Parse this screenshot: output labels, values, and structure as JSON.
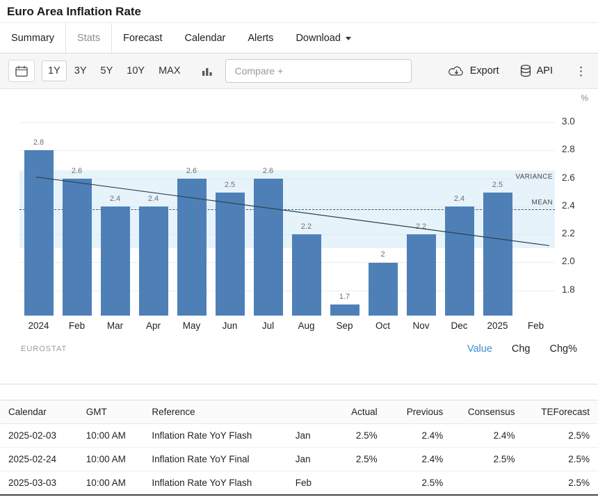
{
  "page": {
    "title": "Euro Area Inflation Rate"
  },
  "tabs": {
    "items": [
      {
        "label": "Summary",
        "active": false,
        "dropdown": false
      },
      {
        "label": "Stats",
        "active": true,
        "dropdown": false
      },
      {
        "label": "Forecast",
        "active": false,
        "dropdown": false
      },
      {
        "label": "Calendar",
        "active": false,
        "dropdown": false
      },
      {
        "label": "Alerts",
        "active": false,
        "dropdown": false
      },
      {
        "label": "Download",
        "active": false,
        "dropdown": true
      }
    ]
  },
  "toolbar": {
    "ranges": [
      "1Y",
      "3Y",
      "5Y",
      "10Y",
      "MAX"
    ],
    "active_range": "1Y",
    "compare_placeholder": "Compare +",
    "export_label": "Export",
    "api_label": "API"
  },
  "chart_data": {
    "type": "bar",
    "categories": [
      "2024",
      "Feb",
      "Mar",
      "Apr",
      "May",
      "Jun",
      "Jul",
      "Aug",
      "Sep",
      "Oct",
      "Nov",
      "Dec",
      "2025",
      "Feb"
    ],
    "values": [
      2.8,
      2.6,
      2.4,
      2.4,
      2.6,
      2.5,
      2.6,
      2.2,
      1.7,
      2,
      2.2,
      2.4,
      2.5,
      null
    ],
    "bar_labels": [
      "2.8",
      "2.6",
      "2.4",
      "2.4",
      "2.6",
      "2.5",
      "2.6",
      "2.2",
      "1.7",
      "2",
      "2.2",
      "2.4",
      "2.5",
      ""
    ],
    "ylabel": "%",
    "yticks": [
      "3.0",
      "2.8",
      "2.6",
      "2.4",
      "2.2",
      "2.0",
      "1.8"
    ],
    "ylim": [
      1.62,
      3.11
    ],
    "mean": 2.38,
    "mean_label": "MEAN",
    "variance_band": [
      2.1,
      2.66
    ],
    "variance_label": "VARIANCE",
    "trend_line": {
      "start_value": 2.61,
      "end_value": 2.12
    },
    "bar_color": "#4e80b7",
    "grid": true,
    "legend": "none",
    "source": "EUROSTAT",
    "view_modes": [
      {
        "label": "Value",
        "active": true
      },
      {
        "label": "Chg",
        "active": false
      },
      {
        "label": "Chg%",
        "active": false
      }
    ]
  },
  "table": {
    "headers": [
      "Calendar",
      "GMT",
      "Reference",
      "",
      "Actual",
      "Previous",
      "Consensus",
      "TEForecast"
    ],
    "rows": [
      {
        "calendar": "2025-02-03",
        "gmt": "10:00 AM",
        "reference": "Inflation Rate YoY Flash",
        "period": "Jan",
        "actual": "2.5%",
        "previous": "2.4%",
        "consensus": "2.4%",
        "teforecast": "2.5%"
      },
      {
        "calendar": "2025-02-24",
        "gmt": "10:00 AM",
        "reference": "Inflation Rate YoY Final",
        "period": "Jan",
        "actual": "2.5%",
        "previous": "2.4%",
        "consensus": "2.5%",
        "teforecast": "2.5%"
      },
      {
        "calendar": "2025-03-03",
        "gmt": "10:00 AM",
        "reference": "Inflation Rate YoY Flash",
        "period": "Feb",
        "actual": "",
        "previous": "2.5%",
        "consensus": "",
        "teforecast": "2.5%"
      }
    ]
  }
}
